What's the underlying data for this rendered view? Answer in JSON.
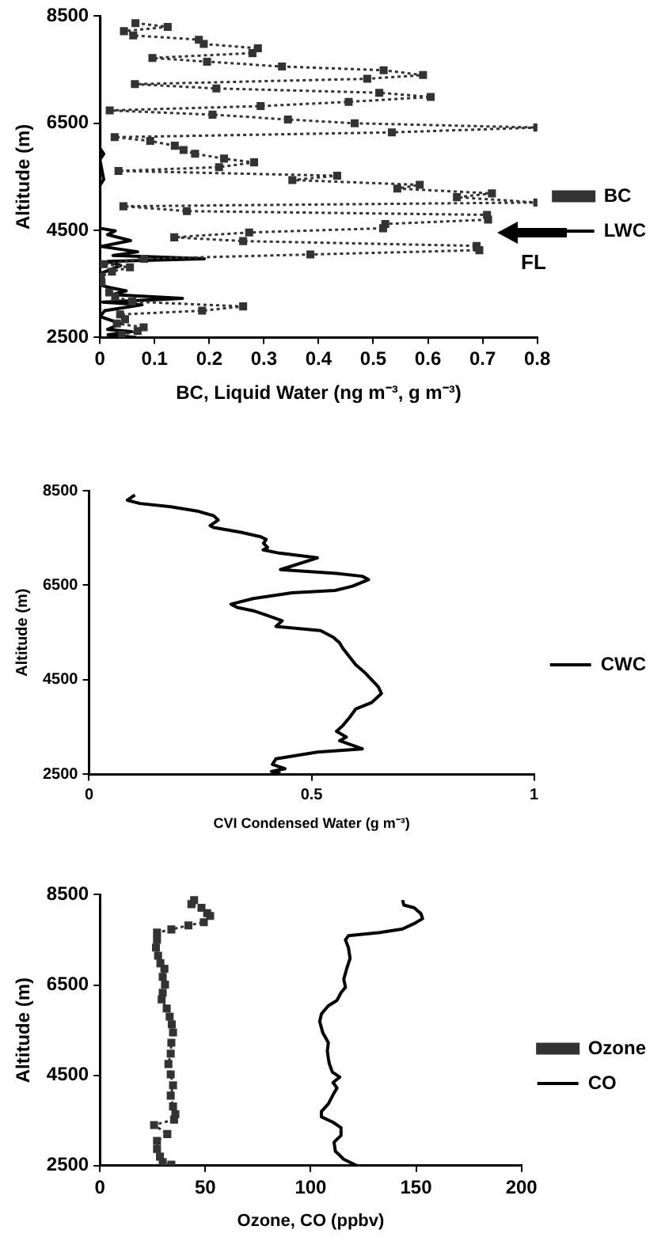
{
  "chart_data": [
    {
      "type": "line",
      "xlabel": "BC, Liquid Water (ng m⁻³, g m⁻³)",
      "ylabel": "Altitude (m)",
      "xlim": [
        0,
        0.8
      ],
      "xticks": [
        0,
        0.1,
        0.2,
        0.3,
        0.4,
        0.5,
        0.6,
        0.7,
        0.8
      ],
      "ylim": [
        2500,
        8500
      ],
      "yticks": [
        2500,
        4500,
        6500,
        8500
      ],
      "legend": "right",
      "annotations": [
        "FL"
      ],
      "series": [
        {
          "name": "BC",
          "color": "#333333",
          "marker": "square",
          "line_style": "dotted",
          "x": [
            0.065,
            0.124,
            0.044,
            0.061,
            0.181,
            0.19,
            0.289,
            0.279,
            0.096,
            0.196,
            0.333,
            0.519,
            0.591,
            0.489,
            0.064,
            0.213,
            0.511,
            0.605,
            0.455,
            0.294,
            0.018,
            0.206,
            0.344,
            0.466,
            0.8,
            0.534,
            0.027,
            0.092,
            0.137,
            0.153,
            0.174,
            0.227,
            0.282,
            0.218,
            0.034,
            0.434,
            0.352,
            0.585,
            0.544,
            0.717,
            0.653,
            0.8,
            0.043,
            0.159,
            0.708,
            0.71,
            0.522,
            0.518,
            0.273,
            0.136,
            0.262,
            0.689,
            0.694,
            0.385,
            0.081,
            0.007,
            0.055,
            0.022,
            0.002,
            0.003,
            0.017,
            0.028,
            0.059,
            0.262,
            0.187,
            0.037,
            0.046,
            0.031,
            0.08,
            0.069,
            0.04
          ],
          "values": [
            8370,
            8300,
            8220,
            8140,
            8060,
            7980,
            7900,
            7810,
            7720,
            7650,
            7560,
            7490,
            7400,
            7330,
            7230,
            7150,
            7070,
            6990,
            6900,
            6820,
            6740,
            6660,
            6570,
            6500,
            6420,
            6330,
            6240,
            6170,
            6080,
            6000,
            5930,
            5840,
            5770,
            5680,
            5610,
            5520,
            5440,
            5350,
            5280,
            5190,
            5120,
            5020,
            4950,
            4860,
            4790,
            4700,
            4620,
            4540,
            4460,
            4370,
            4300,
            4210,
            4130,
            4050,
            3970,
            3870,
            3810,
            3730,
            3640,
            3530,
            3340,
            3260,
            3170,
            3080,
            3000,
            2930,
            2840,
            2760,
            2690,
            2620,
            2550
          ]
        },
        {
          "name": "LWC",
          "color": "#000000",
          "marker": "none",
          "line_style": "solid",
          "x": [
            0,
            0,
            0.007,
            0,
            0.007,
            0,
            0,
            0.028,
            0.014,
            0.056,
            0.002,
            0.069,
            0.024,
            0.191,
            0.015,
            0.038,
            0,
            0,
            0.019,
            0.048,
            0.023,
            0.151,
            0.005,
            0.077,
            0.009,
            0,
            0.038,
            0.014,
            0.058,
            0.015,
            0.067
          ],
          "values": [
            8500,
            6030,
            5930,
            5820,
            5450,
            5340,
            4540,
            4490,
            4420,
            4310,
            4200,
            4100,
            4030,
            3970,
            3920,
            3840,
            3690,
            3480,
            3430,
            3370,
            3300,
            3230,
            3160,
            3110,
            3000,
            2890,
            2760,
            2650,
            2610,
            2550,
            2500
          ]
        }
      ]
    },
    {
      "type": "line",
      "xlabel": "CVI Condensed Water (g m⁻³)",
      "ylabel": "Altitude (m)",
      "xlim": [
        0,
        1
      ],
      "xticks": [
        0,
        0.5,
        1
      ],
      "ylim": [
        2500,
        8500
      ],
      "yticks": [
        2500,
        4500,
        6500,
        8500
      ],
      "legend": "right",
      "series": [
        {
          "name": "CWC",
          "color": "#000000",
          "marker": "none",
          "line_style": "solid",
          "x": [
            0.103,
            0.086,
            0.114,
            0.183,
            0.243,
            0.28,
            0.29,
            0.272,
            0.28,
            0.341,
            0.384,
            0.398,
            0.392,
            0.401,
            0.391,
            0.427,
            0.513,
            0.43,
            0.556,
            0.614,
            0.628,
            0.592,
            0.553,
            0.456,
            0.369,
            0.319,
            0.333,
            0.369,
            0.398,
            0.434,
            0.42,
            0.52,
            0.549,
            0.563,
            0.57,
            0.585,
            0.599,
            0.621,
            0.65,
            0.657,
            0.635,
            0.599,
            0.585,
            0.57,
            0.556,
            0.578,
            0.563,
            0.614,
            0.513,
            0.42,
            0.412,
            0.44,
            0.41,
            0.43
          ],
          "values": [
            8410,
            8300,
            8230,
            8160,
            8070,
            7970,
            7880,
            7760,
            7720,
            7620,
            7530,
            7470,
            7390,
            7300,
            7250,
            7180,
            7080,
            6830,
            6750,
            6690,
            6620,
            6480,
            6390,
            6340,
            6220,
            6100,
            6030,
            5960,
            5870,
            5750,
            5630,
            5540,
            5400,
            5280,
            5170,
            4990,
            4820,
            4640,
            4350,
            4210,
            4020,
            3880,
            3700,
            3530,
            3410,
            3290,
            3210,
            3040,
            2970,
            2830,
            2710,
            2620,
            2560,
            2520
          ]
        }
      ]
    },
    {
      "type": "line",
      "xlabel": "Ozone, CO (ppbv)",
      "ylabel": "Altitude (m)",
      "xlim": [
        0,
        200
      ],
      "xticks": [
        0,
        50,
        100,
        150,
        200
      ],
      "ylim": [
        2500,
        8500
      ],
      "yticks": [
        2500,
        4500,
        6500,
        8500
      ],
      "legend": "right",
      "series": [
        {
          "name": "Ozone",
          "color": "#333333",
          "marker": "square",
          "line_style": "dotted",
          "x": [
            44.7,
            43.4,
            48.2,
            50.9,
            52.3,
            49.3,
            42,
            33.9,
            27.1,
            27.1,
            26.6,
            27.6,
            28.7,
            30.6,
            29.8,
            30.9,
            29.8,
            29.3,
            31.7,
            33.1,
            34.1,
            34.7,
            33.9,
            33.6,
            32.5,
            33.6,
            34.7,
            33.6,
            34.7,
            35.8,
            35.2,
            25.7,
            32,
            27.1,
            27.1,
            28.5,
            29.8,
            33.9
          ],
          "values": [
            8380,
            8290,
            8210,
            8090,
            8030,
            7890,
            7820,
            7730,
            7660,
            7500,
            7330,
            7150,
            6980,
            6860,
            6680,
            6510,
            6330,
            6180,
            5980,
            5800,
            5630,
            5450,
            5220,
            4980,
            4750,
            4520,
            4280,
            4050,
            3810,
            3640,
            3520,
            3400,
            3200,
            3050,
            2870,
            2700,
            2580,
            2520
          ]
        },
        {
          "name": "CO",
          "color": "#000000",
          "marker": "none",
          "line_style": "solid",
          "x": [
            143.6,
            144.2,
            149.1,
            152.3,
            153.1,
            149.1,
            143.6,
            132.8,
            117.9,
            116.5,
            117.9,
            118.7,
            117.1,
            115.7,
            116.5,
            114.4,
            112.5,
            108.4,
            105.1,
            104.3,
            105.7,
            108.4,
            107.9,
            108.4,
            108.9,
            110.3,
            113.8,
            110.6,
            112.5,
            111.1,
            108.4,
            105.1,
            105.1,
            110.6,
            114.4,
            114.4,
            111.1,
            111.7,
            115.7,
            121.9
          ],
          "values": [
            8380,
            8270,
            8210,
            8080,
            7970,
            7860,
            7740,
            7660,
            7590,
            7500,
            7330,
            7090,
            6860,
            6630,
            6450,
            6330,
            6160,
            6040,
            5860,
            5690,
            5450,
            5220,
            5040,
            4870,
            4750,
            4570,
            4460,
            4340,
            4220,
            4110,
            3870,
            3700,
            3580,
            3460,
            3340,
            3170,
            3020,
            2820,
            2640,
            2500
          ]
        }
      ]
    }
  ]
}
